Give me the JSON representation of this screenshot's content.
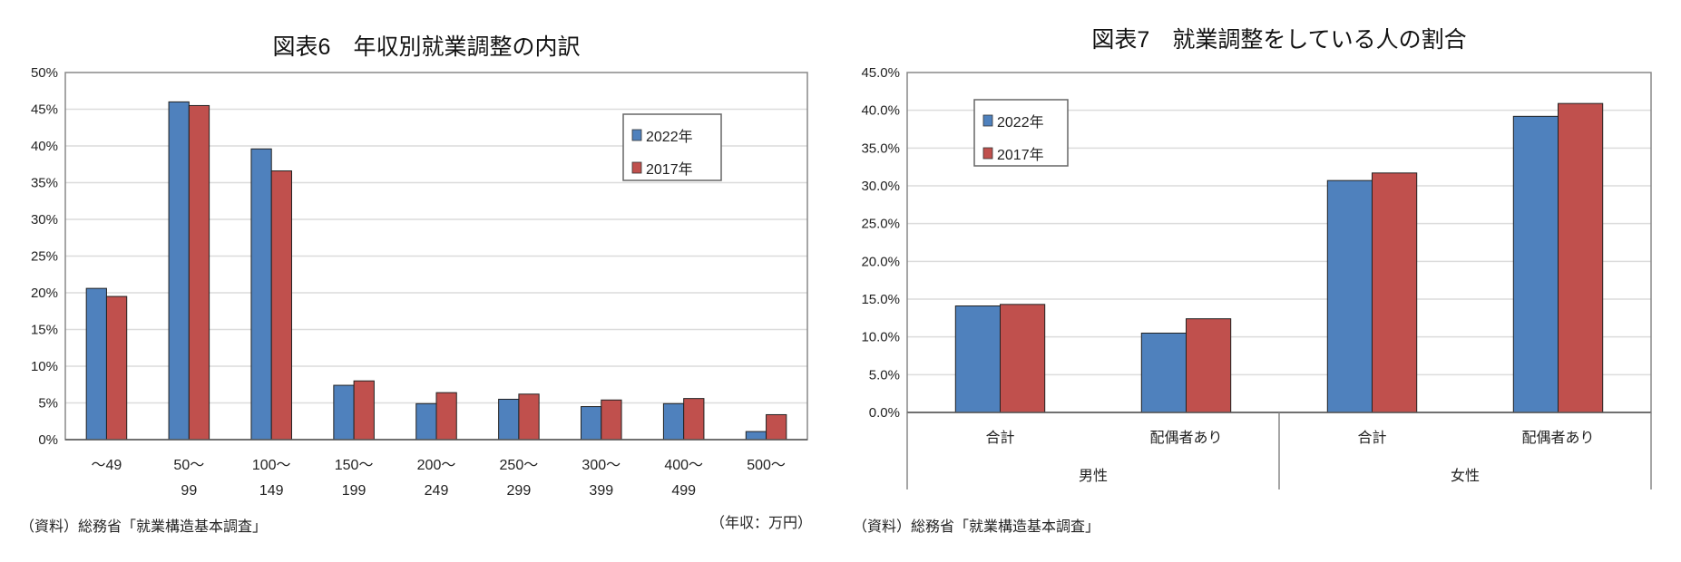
{
  "colors": {
    "s2022": "#4f81bd",
    "s2017": "#c0504d"
  },
  "chart_data": [
    {
      "type": "bar",
      "title": "図表6　年収別就業調整の内訳",
      "xlabel": "（年収：万円）",
      "ylabel": "",
      "ylim": [
        0,
        50
      ],
      "yticks": [
        "0%",
        "5%",
        "10%",
        "15%",
        "20%",
        "25%",
        "30%",
        "35%",
        "40%",
        "45%",
        "50%"
      ],
      "categories": [
        [
          "～49",
          ""
        ],
        [
          "50～",
          "99"
        ],
        [
          "100～",
          "149"
        ],
        [
          "150～",
          "199"
        ],
        [
          "200～",
          "249"
        ],
        [
          "250～",
          "299"
        ],
        [
          "300～",
          "399"
        ],
        [
          "400～",
          "499"
        ],
        [
          "500～",
          ""
        ]
      ],
      "series": [
        {
          "name": "2022年",
          "values": [
            20.6,
            46.0,
            39.6,
            7.4,
            4.9,
            5.5,
            4.5,
            4.9,
            1.1
          ]
        },
        {
          "name": "2017年",
          "values": [
            19.5,
            45.5,
            36.6,
            8.0,
            6.4,
            6.2,
            5.4,
            5.6,
            3.4
          ]
        }
      ],
      "legend": "top-right",
      "grid": true,
      "source": "（資料）総務省「就業構造基本調査」"
    },
    {
      "type": "bar",
      "title": "図表7　就業調整をしている人の割合",
      "xlabel": "",
      "ylabel": "",
      "ylim": [
        0,
        45
      ],
      "yticks": [
        "0.0%",
        "5.0%",
        "10.0%",
        "15.0%",
        "20.0%",
        "25.0%",
        "30.0%",
        "35.0%",
        "40.0%",
        "45.0%"
      ],
      "categories": [
        "合計",
        "配偶者あり",
        "合計",
        "配偶者あり"
      ],
      "groups": [
        "男性",
        "女性"
      ],
      "series": [
        {
          "name": "2022年",
          "values": [
            14.1,
            10.5,
            30.7,
            39.2
          ]
        },
        {
          "name": "2017年",
          "values": [
            14.3,
            12.4,
            31.7,
            40.9
          ]
        }
      ],
      "legend": "top-left",
      "grid": true,
      "source": "（資料）総務省「就業構造基本調査」"
    }
  ]
}
